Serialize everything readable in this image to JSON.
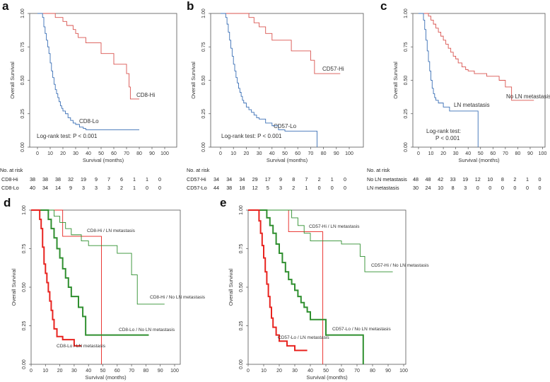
{
  "colors": {
    "red": "#d9534f",
    "blue": "#3a6fb5",
    "green": "#2f8f2f",
    "brightred": "#e8231f",
    "axis": "#555555"
  },
  "chart_data": [
    {
      "panel": "a",
      "type": "line",
      "xlabel": "Survival (months)",
      "ylabel": "Overall Survival",
      "xticks": [
        0,
        10,
        20,
        30,
        40,
        50,
        60,
        70,
        80,
        90,
        100
      ],
      "yticks": [
        0.0,
        0.25,
        0.5,
        0.75,
        1.0
      ],
      "ytick_labels": [
        "0.00",
        "0.25",
        "0.50",
        "0.75",
        "1.00"
      ],
      "xlim": [
        0,
        100
      ],
      "ylim": [
        0,
        1
      ],
      "series": [
        {
          "name": "CD8-Hi",
          "color": "red",
          "width": 0.9,
          "x": [
            0,
            12,
            14,
            20,
            23,
            28,
            30,
            32,
            38,
            40,
            48,
            50,
            55,
            60,
            62,
            70,
            72,
            73,
            80
          ],
          "y": [
            1.0,
            1.0,
            0.97,
            0.94,
            0.91,
            0.88,
            0.85,
            0.82,
            0.78,
            0.78,
            0.78,
            0.7,
            0.7,
            0.62,
            0.62,
            0.55,
            0.45,
            0.36,
            0.36
          ]
        },
        {
          "name": "CD8-Lo",
          "color": "blue",
          "width": 0.9,
          "x": [
            0,
            4,
            5,
            6,
            7,
            8,
            9,
            10,
            11,
            12,
            13,
            14,
            15,
            16,
            17,
            18,
            19,
            20,
            22,
            24,
            26,
            28,
            30,
            33,
            36,
            38,
            40,
            50,
            60,
            70,
            80
          ],
          "y": [
            1.0,
            0.97,
            0.9,
            0.85,
            0.8,
            0.75,
            0.7,
            0.63,
            0.57,
            0.52,
            0.47,
            0.43,
            0.4,
            0.37,
            0.34,
            0.31,
            0.29,
            0.27,
            0.25,
            0.22,
            0.2,
            0.18,
            0.17,
            0.15,
            0.14,
            0.13,
            0.13,
            0.13,
            0.13,
            0.13,
            0.13
          ]
        }
      ],
      "annotations": [
        "Log-rank test: P < 0.001"
      ],
      "risk_table": {
        "title": "No. at risk",
        "rows": [
          {
            "label": "CD8-Hi",
            "values": [
              "38",
              "38",
              "38",
              "32",
              "19",
              "9",
              "7",
              "6",
              "1",
              "1",
              "0"
            ]
          },
          {
            "label": "CD8-Lo",
            "values": [
              "40",
              "34",
              "14",
              "9",
              "3",
              "3",
              "3",
              "2",
              "1",
              "0",
              "0"
            ]
          }
        ]
      }
    },
    {
      "panel": "b",
      "type": "line",
      "xlabel": "Survival (months)",
      "ylabel": "Overall Survival",
      "xticks": [
        0,
        10,
        20,
        30,
        40,
        50,
        60,
        70,
        80,
        90,
        100
      ],
      "yticks": [
        0.0,
        0.25,
        0.5,
        0.75,
        1.0
      ],
      "ytick_labels": [
        "0.00",
        "0.25",
        "0.50",
        "0.75",
        "1.00"
      ],
      "xlim": [
        0,
        100
      ],
      "ylim": [
        0,
        1
      ],
      "series": [
        {
          "name": "CD57-Hi",
          "color": "red",
          "width": 0.9,
          "x": [
            0,
            20,
            22,
            26,
            30,
            35,
            40,
            50,
            55,
            60,
            70,
            73,
            80,
            90,
            93
          ],
          "y": [
            1.0,
            1.0,
            0.97,
            0.93,
            0.9,
            0.85,
            0.8,
            0.8,
            0.72,
            0.72,
            0.65,
            0.55,
            0.55,
            0.55,
            0.55
          ]
        },
        {
          "name": "CD57-Lo",
          "color": "blue",
          "width": 0.9,
          "x": [
            0,
            4,
            5,
            6,
            7,
            8,
            9,
            10,
            11,
            12,
            13,
            14,
            15,
            16,
            17,
            18,
            20,
            22,
            24,
            26,
            28,
            30,
            35,
            40,
            45,
            50,
            55,
            60,
            65,
            70,
            73,
            75
          ],
          "y": [
            1.0,
            0.97,
            0.92,
            0.86,
            0.8,
            0.74,
            0.68,
            0.62,
            0.57,
            0.52,
            0.48,
            0.44,
            0.41,
            0.38,
            0.35,
            0.33,
            0.3,
            0.28,
            0.26,
            0.24,
            0.22,
            0.21,
            0.18,
            0.16,
            0.13,
            0.12,
            0.12,
            0.12,
            0.12,
            0.12,
            0.12,
            0.0
          ]
        }
      ],
      "annotations": [
        "Log-rank test: P < 0.001"
      ],
      "risk_table": {
        "title": "No. at risk",
        "rows": [
          {
            "label": "CD57-Hi",
            "values": [
              "34",
              "34",
              "34",
              "29",
              "17",
              "9",
              "8",
              "7",
              "2",
              "1",
              "0"
            ]
          },
          {
            "label": "CD57-Lo",
            "values": [
              "44",
              "38",
              "18",
              "12",
              "5",
              "3",
              "2",
              "1",
              "0",
              "0",
              "0"
            ]
          }
        ]
      }
    },
    {
      "panel": "c",
      "type": "line",
      "xlabel": "Survival (months)",
      "ylabel": "Overall Survival",
      "xticks": [
        0,
        10,
        20,
        30,
        40,
        50,
        60,
        70,
        80,
        90,
        100
      ],
      "yticks": [
        0.0,
        0.25,
        0.5,
        0.75,
        1.0
      ],
      "ytick_labels": [
        "0.00",
        "0.25",
        "0.50",
        "0.75",
        "1.00"
      ],
      "xlim": [
        0,
        100
      ],
      "ylim": [
        0,
        1
      ],
      "series": [
        {
          "name": "No LN metastasis",
          "color": "red",
          "width": 0.9,
          "x": [
            0,
            8,
            10,
            12,
            14,
            16,
            18,
            20,
            22,
            24,
            26,
            28,
            30,
            32,
            35,
            38,
            40,
            45,
            50,
            55,
            60,
            65,
            70,
            75,
            80,
            90,
            93
          ],
          "y": [
            1.0,
            0.98,
            0.95,
            0.92,
            0.89,
            0.86,
            0.83,
            0.8,
            0.77,
            0.74,
            0.71,
            0.68,
            0.66,
            0.63,
            0.6,
            0.58,
            0.57,
            0.55,
            0.55,
            0.53,
            0.53,
            0.5,
            0.45,
            0.35,
            0.35,
            0.35,
            0.35
          ]
        },
        {
          "name": "LN metastasis",
          "color": "blue",
          "width": 0.9,
          "x": [
            0,
            4,
            5,
            6,
            7,
            8,
            9,
            10,
            11,
            12,
            13,
            14,
            16,
            18,
            20,
            25,
            30,
            35,
            40,
            45,
            48
          ],
          "y": [
            1.0,
            0.95,
            0.88,
            0.8,
            0.72,
            0.64,
            0.57,
            0.5,
            0.44,
            0.4,
            0.37,
            0.35,
            0.33,
            0.33,
            0.3,
            0.27,
            0.27,
            0.27,
            0.27,
            0.27,
            0.0
          ]
        }
      ],
      "annotations": [
        "Log-rank test:",
        "P < 0.001"
      ],
      "risk_table": {
        "title": "No. at risk",
        "rows": [
          {
            "label": "No LN metastasis",
            "values": [
              "48",
              "48",
              "42",
              "33",
              "19",
              "12",
              "10",
              "8",
              "2",
              "1",
              "0"
            ]
          },
          {
            "label": "LN metastasis",
            "values": [
              "30",
              "24",
              "10",
              "8",
              "3",
              "0",
              "0",
              "0",
              "0",
              "0",
              "0"
            ]
          }
        ]
      }
    },
    {
      "panel": "d",
      "type": "line",
      "xlabel": "Survival (months)",
      "ylabel": "Overall Survival",
      "xticks": [
        0,
        10,
        20,
        30,
        40,
        50,
        60,
        70,
        80,
        90,
        100
      ],
      "yticks": [
        0.0,
        0.25,
        0.5,
        0.75,
        1.0
      ],
      "ytick_labels": [
        "0.00",
        "0.25",
        "0.50",
        "0.75",
        "1.00"
      ],
      "xlim": [
        0,
        100
      ],
      "ylim": [
        0,
        1
      ],
      "series": [
        {
          "name": "CD8-Hi / LN metastasis",
          "color": "brightred",
          "width": 0.9,
          "x": [
            0,
            18,
            22,
            30,
            40,
            48,
            49
          ],
          "y": [
            1.0,
            1.0,
            0.83,
            0.83,
            0.83,
            0.83,
            0.0
          ]
        },
        {
          "name": "CD8-Hi / No LN metastasis",
          "color": "green",
          "width": 0.9,
          "x": [
            0,
            12,
            16,
            20,
            24,
            28,
            35,
            40,
            50,
            55,
            60,
            70,
            72,
            74,
            80,
            90,
            93
          ],
          "y": [
            1.0,
            1.0,
            0.96,
            0.92,
            0.88,
            0.84,
            0.8,
            0.77,
            0.77,
            0.77,
            0.72,
            0.58,
            0.58,
            0.39,
            0.39,
            0.39,
            0.39
          ]
        },
        {
          "name": "CD8-Lo / No LN metastasis",
          "color": "green",
          "width": 2.0,
          "x": [
            0,
            10,
            12,
            14,
            16,
            18,
            20,
            22,
            24,
            26,
            28,
            30,
            33,
            36,
            38,
            40,
            50,
            60,
            70,
            80,
            82
          ],
          "y": [
            1.0,
            1.0,
            0.94,
            0.88,
            0.82,
            0.75,
            0.69,
            0.62,
            0.56,
            0.5,
            0.44,
            0.44,
            0.37,
            0.31,
            0.19,
            0.19,
            0.19,
            0.19,
            0.19,
            0.19,
            0.19
          ]
        },
        {
          "name": "CD8-Lo / LN metastasis",
          "color": "brightred",
          "width": 2.0,
          "x": [
            0,
            5,
            6,
            7,
            8,
            9,
            10,
            11,
            12,
            13,
            14,
            15,
            16,
            18,
            20,
            22,
            25,
            28,
            30,
            33,
            35
          ],
          "y": [
            1.0,
            1.0,
            0.94,
            0.88,
            0.76,
            0.65,
            0.59,
            0.53,
            0.47,
            0.41,
            0.35,
            0.29,
            0.23,
            0.18,
            0.18,
            0.16,
            0.16,
            0.16,
            0.12,
            0.12,
            0.12
          ]
        }
      ],
      "annotations": []
    },
    {
      "panel": "e",
      "type": "line",
      "xlabel": "Survival (months)",
      "ylabel": "Overall Survival",
      "xticks": [
        0,
        10,
        20,
        30,
        40,
        50,
        60,
        70,
        80,
        90,
        100
      ],
      "yticks": [
        0.0,
        0.25,
        0.5,
        0.75,
        1.0
      ],
      "ytick_labels": [
        "0.00",
        "0.25",
        "0.50",
        "0.75",
        "1.00"
      ],
      "xlim": [
        0,
        100
      ],
      "ylim": [
        0,
        1
      ],
      "series": [
        {
          "name": "CD57-Hi / LN metastasis",
          "color": "brightred",
          "width": 0.9,
          "x": [
            0,
            22,
            26,
            30,
            40,
            47,
            48
          ],
          "y": [
            1.0,
            1.0,
            0.86,
            0.86,
            0.86,
            0.86,
            0.0
          ]
        },
        {
          "name": "CD57-Hi / No LN metastasis",
          "color": "green",
          "width": 0.9,
          "x": [
            0,
            25,
            28,
            32,
            36,
            40,
            50,
            60,
            70,
            72,
            75,
            80,
            90,
            93
          ],
          "y": [
            1.0,
            1.0,
            0.95,
            0.9,
            0.85,
            0.8,
            0.8,
            0.78,
            0.78,
            0.7,
            0.6,
            0.6,
            0.6,
            0.6
          ]
        },
        {
          "name": "CD57-Lo / No LN metastasis",
          "color": "green",
          "width": 2.0,
          "x": [
            0,
            10,
            12,
            14,
            16,
            18,
            20,
            22,
            24,
            26,
            28,
            30,
            32,
            34,
            36,
            38,
            40,
            45,
            50,
            55,
            60,
            65,
            70,
            73,
            74
          ],
          "y": [
            1.0,
            1.0,
            0.95,
            0.9,
            0.85,
            0.78,
            0.72,
            0.66,
            0.6,
            0.55,
            0.52,
            0.48,
            0.44,
            0.4,
            0.37,
            0.34,
            0.29,
            0.29,
            0.19,
            0.19,
            0.19,
            0.19,
            0.19,
            0.19,
            0.0
          ]
        },
        {
          "name": "CD57-Lo / LN metastasis",
          "color": "brightred",
          "width": 2.0,
          "x": [
            0,
            6,
            7,
            8,
            9,
            10,
            11,
            12,
            13,
            14,
            15,
            16,
            18,
            20,
            22,
            25,
            28,
            30,
            33,
            35,
            38
          ],
          "y": [
            1.0,
            1.0,
            0.93,
            0.85,
            0.77,
            0.69,
            0.6,
            0.52,
            0.44,
            0.37,
            0.3,
            0.24,
            0.19,
            0.15,
            0.15,
            0.12,
            0.12,
            0.09,
            0.09,
            0.09,
            0.09
          ]
        }
      ],
      "annotations": []
    }
  ]
}
